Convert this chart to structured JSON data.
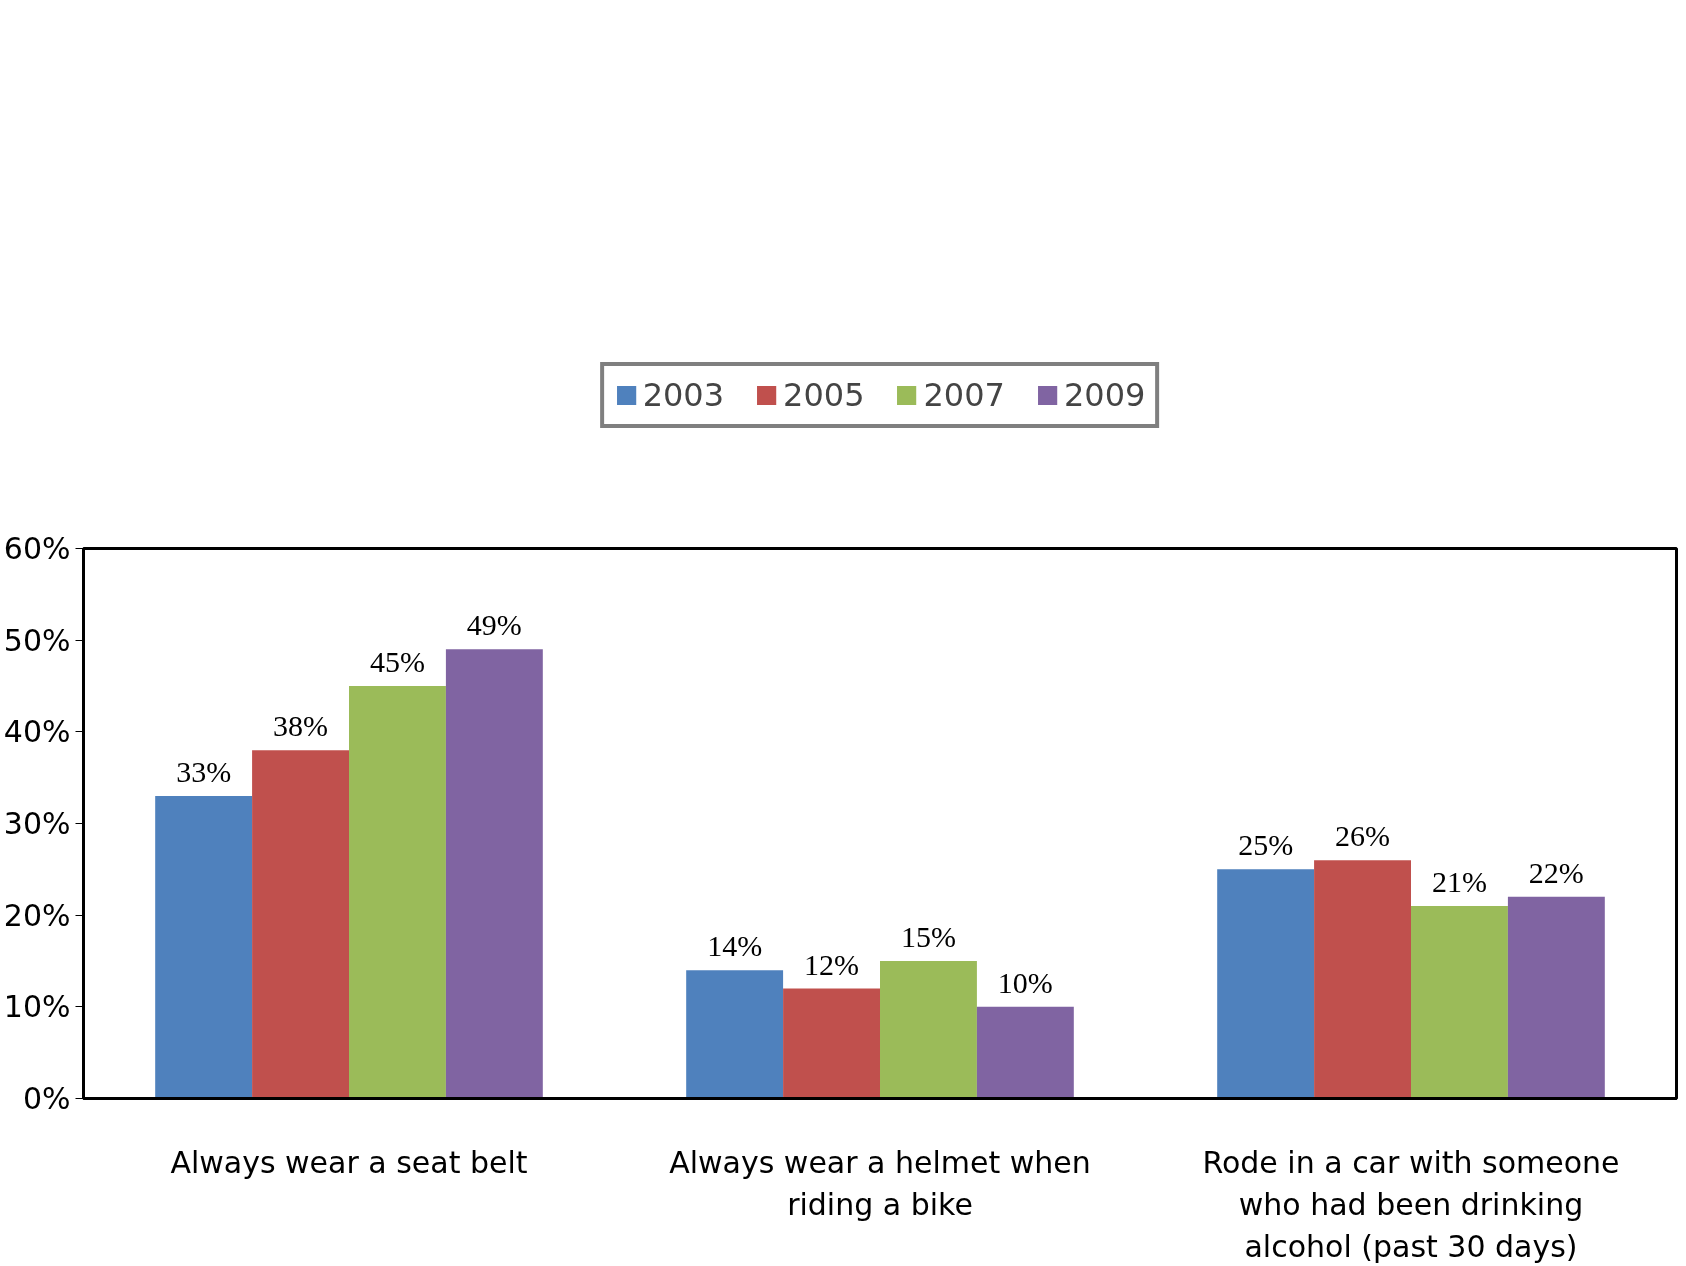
{
  "chart_data": {
    "type": "bar",
    "categories": [
      "Always wear a seat belt",
      "Always wear a helmet when riding a bike",
      "Rode in a car with someone who had been drinking alcohol (past 30 days)"
    ],
    "series": [
      {
        "name": "2003",
        "color": "#4f81bd",
        "values": [
          33,
          14,
          25
        ],
        "value_labels": [
          "33%",
          "14%",
          "25%"
        ]
      },
      {
        "name": "2005",
        "color": "#c0504d",
        "values": [
          38,
          12,
          26
        ],
        "value_labels": [
          "38%",
          "12%",
          "26%"
        ]
      },
      {
        "name": "2007",
        "color": "#9bbb59",
        "values": [
          45,
          15,
          21
        ],
        "value_labels": [
          "45%",
          "15%",
          "21%"
        ]
      },
      {
        "name": "2009",
        "color": "#8064a2",
        "values": [
          49,
          10,
          22
        ],
        "value_labels": [
          "49%",
          "10%",
          "22%"
        ]
      }
    ],
    "ylim": [
      0,
      60
    ],
    "yticks": [
      {
        "value": 0,
        "label": "0%"
      },
      {
        "value": 10,
        "label": "10%"
      },
      {
        "value": 20,
        "label": "20%"
      },
      {
        "value": 30,
        "label": "30%"
      },
      {
        "value": 40,
        "label": "40%"
      },
      {
        "value": 50,
        "label": "50%"
      },
      {
        "value": 60,
        "label": "60%"
      }
    ],
    "grid": false,
    "legend": "top"
  }
}
